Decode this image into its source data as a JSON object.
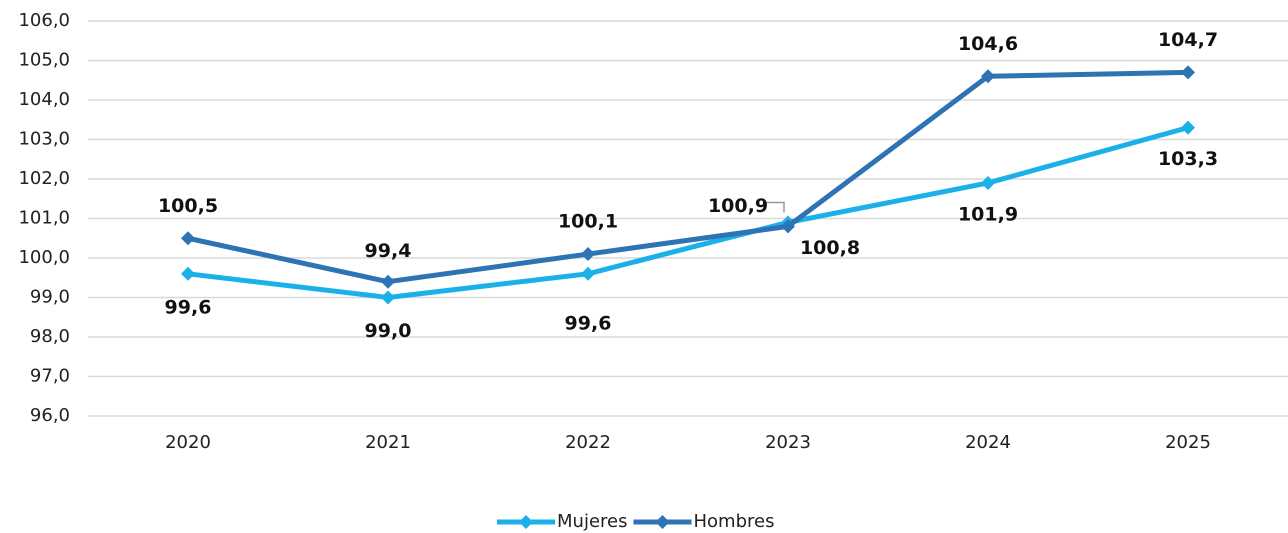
{
  "chart_data": {
    "type": "line",
    "categories": [
      "2020",
      "2021",
      "2022",
      "2023",
      "2024",
      "2025"
    ],
    "series": [
      {
        "name": "Mujeres",
        "color": "#1cb0e8",
        "values": [
          99.6,
          99.0,
          99.6,
          100.9,
          101.9,
          103.3
        ],
        "value_labels": [
          "99,6",
          "99,0",
          "99,6",
          "100,9",
          "101,9",
          "103,3"
        ]
      },
      {
        "name": "Hombres",
        "color": "#2e73b3",
        "values": [
          100.5,
          99.4,
          100.1,
          100.8,
          104.6,
          104.7
        ],
        "value_labels": [
          "100,5",
          "99,4",
          "100,1",
          "100,8",
          "104,6",
          "104,7"
        ]
      }
    ],
    "ylim": [
      96,
      106
    ],
    "yticks": [
      {
        "value": 96,
        "label": "96,0"
      },
      {
        "value": 97,
        "label": "97,0"
      },
      {
        "value": 98,
        "label": "98,0"
      },
      {
        "value": 99,
        "label": "99,0"
      },
      {
        "value": 100,
        "label": "100,0"
      },
      {
        "value": 101,
        "label": "101,0"
      },
      {
        "value": 102,
        "label": "102,0"
      },
      {
        "value": 103,
        "label": "103,0"
      },
      {
        "value": 104,
        "label": "104,0"
      },
      {
        "value": 105,
        "label": "105,0"
      },
      {
        "value": 106,
        "label": "106,0"
      }
    ],
    "grid": true,
    "legend": "bottom"
  }
}
